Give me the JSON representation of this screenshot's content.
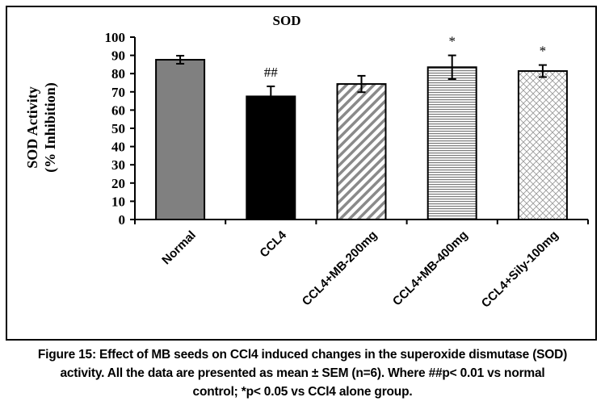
{
  "chart_data": {
    "type": "bar",
    "title": "SOD",
    "xlabel": "",
    "ylabel_line1": "SOD Activity",
    "ylabel_line2": "(% Inhibition)",
    "ylim": [
      0,
      100
    ],
    "yticks": [
      0,
      10,
      20,
      30,
      40,
      50,
      60,
      70,
      80,
      90,
      100
    ],
    "grid": false,
    "categories": [
      "Normal",
      "CCL4",
      "CCL4+MB-200mg",
      "CCL4+MB-400mg",
      "CCL4+Sily-100mg"
    ],
    "values": [
      87.6,
      67.5,
      74.3,
      83.5,
      81.4
    ],
    "errors": [
      2.2,
      5.5,
      4.5,
      6.5,
      3.3
    ],
    "error_style": [
      "both",
      "upper",
      "both",
      "both",
      "both"
    ],
    "annotations": [
      "",
      "##",
      "",
      "*",
      "*"
    ],
    "fills": [
      "solid-gray",
      "solid-black",
      "diagonal-hatch",
      "horizontal-lines",
      "crosshatch"
    ],
    "colors": {
      "gray": "#808080",
      "black": "#000000",
      "hatch": "#8a8a8a"
    }
  },
  "caption": {
    "line1": "Figure 15: Effect of MB seeds on CCl4 induced changes in the superoxide dismutase (SOD)",
    "line2": "activity. All the data are presented as mean ± SEM (n=6). Where ##p< 0.01 vs normal",
    "line3": "control; *p< 0.05 vs CCl4 alone group."
  }
}
